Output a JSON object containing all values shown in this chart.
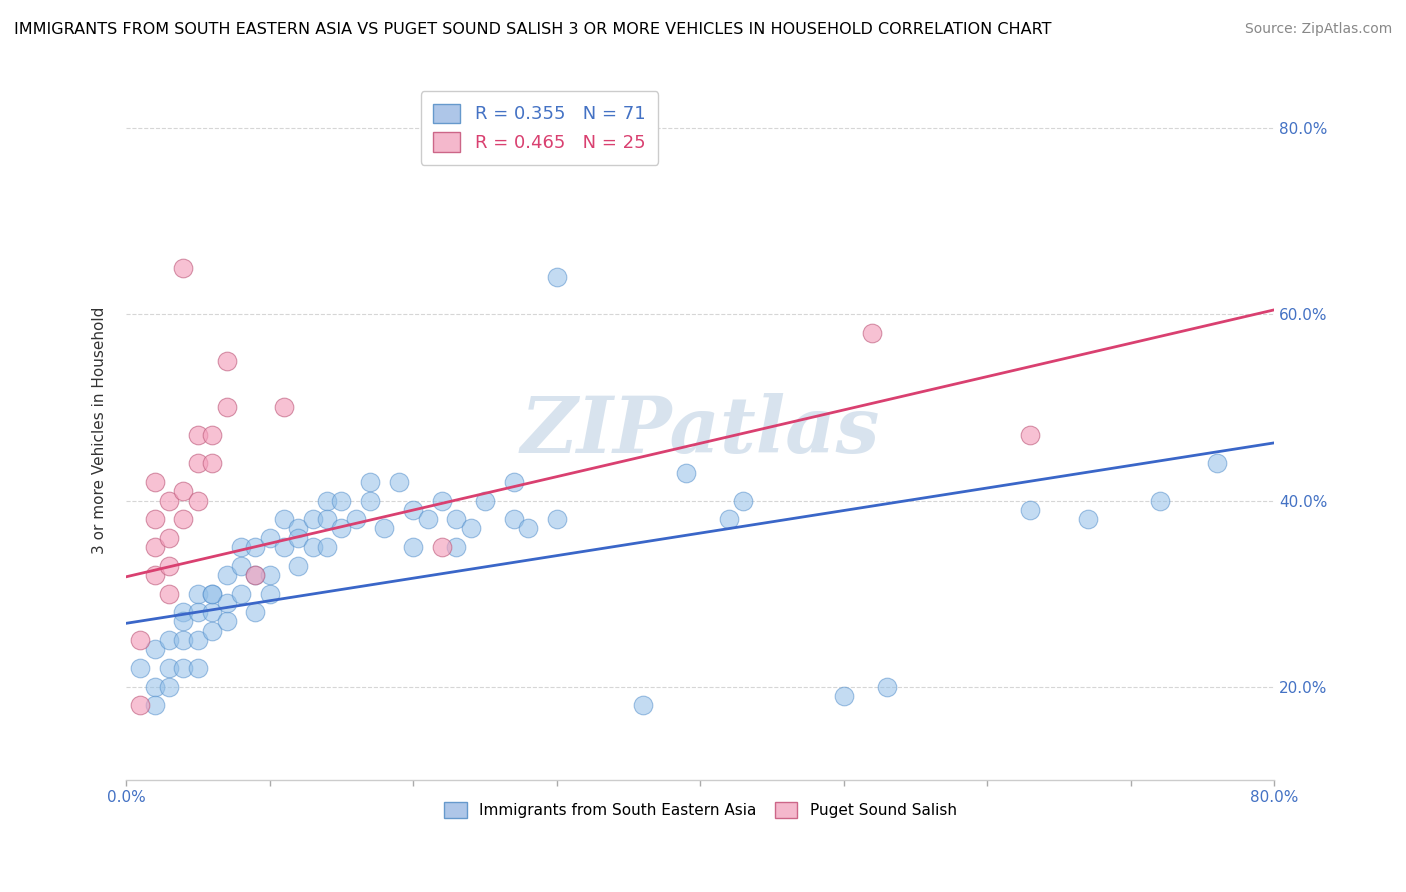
{
  "title": "IMMIGRANTS FROM SOUTH EASTERN ASIA VS PUGET SOUND SALISH 3 OR MORE VEHICLES IN HOUSEHOLD CORRELATION CHART",
  "source": "Source: ZipAtlas.com",
  "ylabel": "3 or more Vehicles in Household",
  "xlim": [
    0.0,
    0.8
  ],
  "ylim": [
    0.1,
    0.85
  ],
  "ytick_vals": [
    0.2,
    0.4,
    0.6,
    0.8
  ],
  "legend1_label": "R = 0.355   N = 71",
  "legend2_label": "R = 0.465   N = 25",
  "legend1_patch_color": "#aec6e8",
  "legend2_patch_color": "#f4b8cc",
  "blue_color": "#92bfe8",
  "pink_color": "#f4a0bc",
  "blue_line_color": "#3a66c8",
  "pink_line_color": "#d94070",
  "watermark": "ZIPatlas",
  "blue_line_x": [
    0.0,
    0.8
  ],
  "blue_line_y": [
    0.268,
    0.462
  ],
  "pink_line_x": [
    0.0,
    0.8
  ],
  "pink_line_y": [
    0.318,
    0.605
  ],
  "blue_scatter": [
    [
      0.01,
      0.22
    ],
    [
      0.02,
      0.2
    ],
    [
      0.02,
      0.18
    ],
    [
      0.02,
      0.24
    ],
    [
      0.03,
      0.22
    ],
    [
      0.03,
      0.25
    ],
    [
      0.03,
      0.2
    ],
    [
      0.04,
      0.28
    ],
    [
      0.04,
      0.22
    ],
    [
      0.04,
      0.25
    ],
    [
      0.04,
      0.27
    ],
    [
      0.05,
      0.3
    ],
    [
      0.05,
      0.22
    ],
    [
      0.05,
      0.25
    ],
    [
      0.05,
      0.28
    ],
    [
      0.06,
      0.3
    ],
    [
      0.06,
      0.28
    ],
    [
      0.06,
      0.26
    ],
    [
      0.06,
      0.3
    ],
    [
      0.07,
      0.27
    ],
    [
      0.07,
      0.32
    ],
    [
      0.07,
      0.29
    ],
    [
      0.08,
      0.35
    ],
    [
      0.08,
      0.3
    ],
    [
      0.08,
      0.33
    ],
    [
      0.09,
      0.28
    ],
    [
      0.09,
      0.32
    ],
    [
      0.09,
      0.35
    ],
    [
      0.1,
      0.3
    ],
    [
      0.1,
      0.36
    ],
    [
      0.1,
      0.32
    ],
    [
      0.11,
      0.38
    ],
    [
      0.11,
      0.35
    ],
    [
      0.12,
      0.37
    ],
    [
      0.12,
      0.33
    ],
    [
      0.12,
      0.36
    ],
    [
      0.13,
      0.38
    ],
    [
      0.13,
      0.35
    ],
    [
      0.14,
      0.4
    ],
    [
      0.14,
      0.38
    ],
    [
      0.14,
      0.35
    ],
    [
      0.15,
      0.37
    ],
    [
      0.15,
      0.4
    ],
    [
      0.16,
      0.38
    ],
    [
      0.17,
      0.42
    ],
    [
      0.17,
      0.4
    ],
    [
      0.18,
      0.37
    ],
    [
      0.19,
      0.42
    ],
    [
      0.2,
      0.39
    ],
    [
      0.2,
      0.35
    ],
    [
      0.21,
      0.38
    ],
    [
      0.22,
      0.4
    ],
    [
      0.23,
      0.38
    ],
    [
      0.23,
      0.35
    ],
    [
      0.24,
      0.37
    ],
    [
      0.25,
      0.4
    ],
    [
      0.27,
      0.38
    ],
    [
      0.27,
      0.42
    ],
    [
      0.28,
      0.37
    ],
    [
      0.3,
      0.38
    ],
    [
      0.3,
      0.64
    ],
    [
      0.36,
      0.18
    ],
    [
      0.39,
      0.43
    ],
    [
      0.42,
      0.38
    ],
    [
      0.43,
      0.4
    ],
    [
      0.5,
      0.19
    ],
    [
      0.53,
      0.2
    ],
    [
      0.63,
      0.39
    ],
    [
      0.67,
      0.38
    ],
    [
      0.72,
      0.4
    ],
    [
      0.76,
      0.44
    ]
  ],
  "pink_scatter": [
    [
      0.01,
      0.18
    ],
    [
      0.02,
      0.32
    ],
    [
      0.02,
      0.35
    ],
    [
      0.02,
      0.38
    ],
    [
      0.02,
      0.42
    ],
    [
      0.03,
      0.3
    ],
    [
      0.03,
      0.33
    ],
    [
      0.03,
      0.36
    ],
    [
      0.03,
      0.4
    ],
    [
      0.04,
      0.38
    ],
    [
      0.04,
      0.41
    ],
    [
      0.04,
      0.65
    ],
    [
      0.05,
      0.4
    ],
    [
      0.05,
      0.44
    ],
    [
      0.05,
      0.47
    ],
    [
      0.06,
      0.44
    ],
    [
      0.06,
      0.47
    ],
    [
      0.07,
      0.5
    ],
    [
      0.07,
      0.55
    ],
    [
      0.09,
      0.32
    ],
    [
      0.11,
      0.5
    ],
    [
      0.22,
      0.35
    ],
    [
      0.52,
      0.58
    ],
    [
      0.63,
      0.47
    ],
    [
      0.01,
      0.25
    ]
  ]
}
